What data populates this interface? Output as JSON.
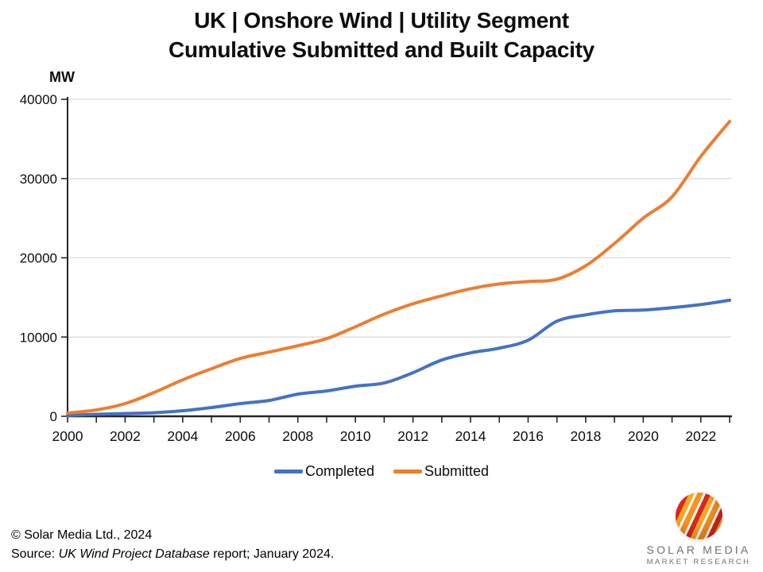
{
  "title": {
    "line1": "UK | Onshore Wind | Utility Segment",
    "line2": "Cumulative Submitted and Built Capacity"
  },
  "chart_data": {
    "type": "line",
    "title_lines": [
      "UK | Onshore Wind | Utility Segment",
      "Cumulative Submitted and Built Capacity"
    ],
    "unit_label": "MW",
    "x": [
      2000,
      2001,
      2002,
      2003,
      2004,
      2005,
      2006,
      2007,
      2008,
      2009,
      2010,
      2011,
      2012,
      2013,
      2014,
      2015,
      2016,
      2017,
      2018,
      2019,
      2020,
      2021,
      2022,
      2023
    ],
    "series": [
      {
        "name": "Completed",
        "color": "#4472C4",
        "values": [
          100,
          250,
          350,
          450,
          700,
          1100,
          1600,
          2000,
          2800,
          3200,
          3800,
          4200,
          5500,
          7100,
          8000,
          8600,
          9600,
          12000,
          12800,
          13300,
          13400,
          13700,
          14100,
          14650
        ]
      },
      {
        "name": "Submitted",
        "color": "#ED7D31",
        "values": [
          400,
          800,
          1600,
          3000,
          4600,
          6000,
          7300,
          8100,
          8900,
          9800,
          11300,
          12900,
          14200,
          15200,
          16100,
          16700,
          17000,
          17300,
          19000,
          21800,
          25000,
          27700,
          32800,
          37200
        ]
      }
    ],
    "ylim": [
      0,
      40000
    ],
    "ytick_step": 10000,
    "xlabel_step": 2,
    "grid": "horizontal",
    "gridline_color": "#D9D9D9",
    "axis_color": "#262626",
    "legend_position": "bottom-center",
    "line_smoothing": true
  },
  "legend": {
    "items": [
      {
        "label": "Completed",
        "color": "#4472C4"
      },
      {
        "label": "Submitted",
        "color": "#ED7D31"
      }
    ]
  },
  "footer": {
    "copyright": "© Solar Media Ltd., 2024",
    "source_prefix": "Source: ",
    "source_italic": "UK Wind Project Database",
    "source_suffix": " report; January 2024."
  },
  "logo": {
    "line1": "SOLAR MEDIA",
    "line2": "MARKET RESEARCH"
  }
}
